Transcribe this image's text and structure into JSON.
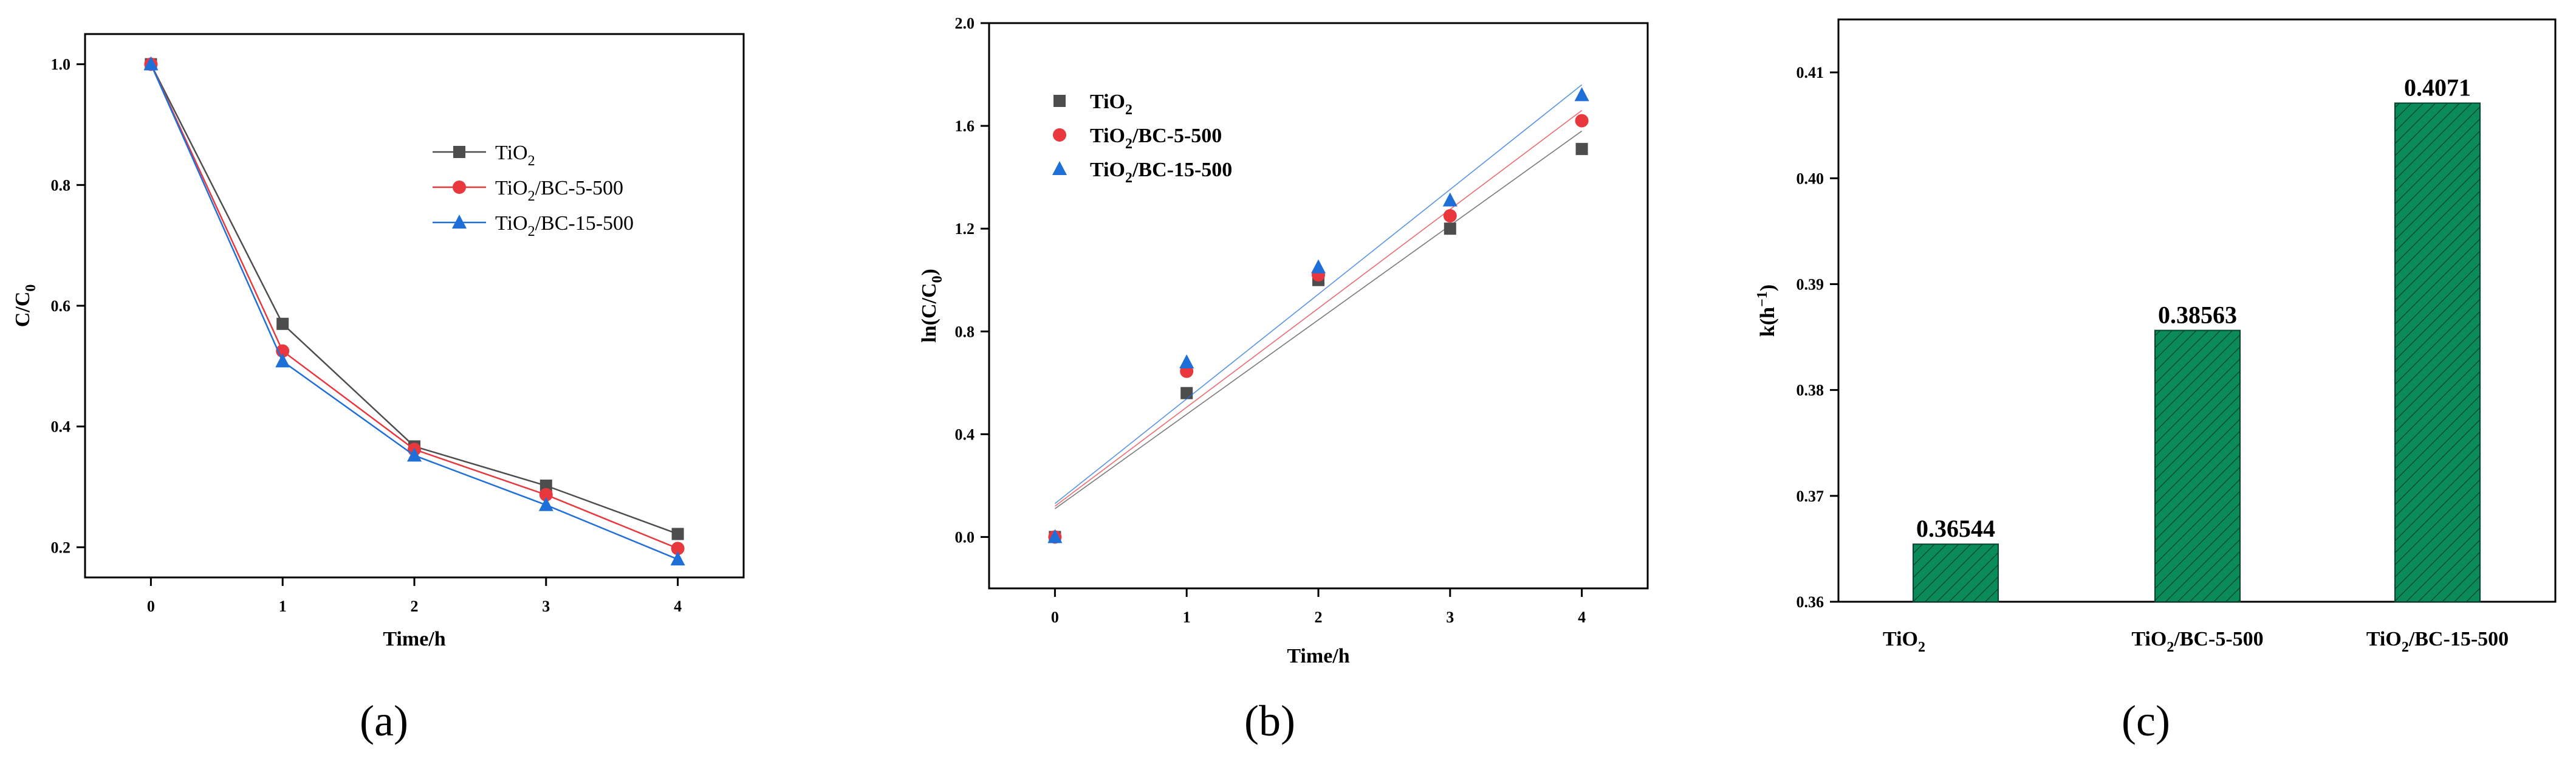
{
  "colors": {
    "tio2": "#4d4d4d",
    "bc5": "#e8383d",
    "bc15": "#1f6fd9",
    "bar": "#0b8a5a"
  },
  "chart_data": [
    {
      "type": "line",
      "panel": "(a)",
      "xlabel": "Time/h",
      "ylabel": "C/C0",
      "xlim": [
        -0.5,
        4.5
      ],
      "ylim": [
        0.15,
        1.05
      ],
      "xticks": [
        0,
        1,
        2,
        3,
        4
      ],
      "yticks": [
        0.2,
        0.4,
        0.6,
        0.8,
        1.0
      ],
      "legend_loc": "upper-right",
      "series": [
        {
          "name": "TiO2",
          "base": "TiO",
          "sub": "2",
          "rest": "",
          "marker": "square",
          "color": "#4d4d4d",
          "x": [
            0,
            1,
            2,
            3,
            4
          ],
          "y": [
            1.0,
            0.57,
            0.367,
            0.302,
            0.222
          ]
        },
        {
          "name": "TiO2/BC-5-500",
          "base": "TiO",
          "sub": "2",
          "rest": "/BC-5-500",
          "marker": "circle",
          "color": "#e8383d",
          "x": [
            0,
            1,
            2,
            3,
            4
          ],
          "y": [
            1.0,
            0.525,
            0.362,
            0.287,
            0.198
          ]
        },
        {
          "name": "TiO2/BC-15-500",
          "base": "TiO",
          "sub": "2",
          "rest": "/BC-15-500",
          "marker": "triangle",
          "color": "#1f6fd9",
          "x": [
            0,
            1,
            2,
            3,
            4
          ],
          "y": [
            1.0,
            0.508,
            0.352,
            0.27,
            0.18
          ]
        }
      ]
    },
    {
      "type": "scatter",
      "panel": "(b)",
      "xlabel": "Time/h",
      "ylabel": "ln(C/C0)",
      "xlim": [
        -0.5,
        4.5
      ],
      "ylim": [
        -0.2,
        2.0
      ],
      "xticks": [
        0,
        1,
        2,
        3,
        4
      ],
      "yticks": [
        0.0,
        0.4,
        0.8,
        1.2,
        1.6,
        2.0
      ],
      "legend_loc": "upper-left",
      "series": [
        {
          "name": "TiO2",
          "base": "TiO",
          "sub": "2",
          "rest": "",
          "marker": "square",
          "color": "#4d4d4d",
          "x": [
            0,
            1,
            2,
            3,
            4
          ],
          "y": [
            0.0,
            0.56,
            1.0,
            1.2,
            1.51
          ],
          "fit": [
            0.11,
            1.58
          ]
        },
        {
          "name": "TiO2/BC-5-500",
          "base": "TiO",
          "sub": "2",
          "rest": "/BC-5-500",
          "marker": "circle",
          "color": "#e8383d",
          "x": [
            0,
            1,
            2,
            3,
            4
          ],
          "y": [
            0.0,
            0.645,
            1.02,
            1.25,
            1.62
          ],
          "fit": [
            0.12,
            1.66
          ]
        },
        {
          "name": "TiO2/BC-15-500",
          "base": "TiO",
          "sub": "2",
          "rest": "/BC-15-500",
          "marker": "triangle",
          "color": "#1f6fd9",
          "x": [
            0,
            1,
            2,
            3,
            4
          ],
          "y": [
            0.0,
            0.68,
            1.05,
            1.31,
            1.72
          ],
          "fit": [
            0.13,
            1.76
          ]
        }
      ]
    },
    {
      "type": "bar",
      "panel": "(c)",
      "ylabel": "k(h",
      "ylabel_sup": "−1",
      "ylim": [
        0.36,
        0.415
      ],
      "yticks": [
        0.36,
        0.37,
        0.38,
        0.39,
        0.4,
        0.41
      ],
      "categories": [
        {
          "base": "TiO",
          "sub": "2",
          "rest": ""
        },
        {
          "base": "TiO",
          "sub": "2",
          "rest": "/BC-5-500"
        },
        {
          "base": "TiO",
          "sub": "2",
          "rest": "/BC-15-500"
        }
      ],
      "values": [
        0.36544,
        0.38563,
        0.4071
      ],
      "value_labels": [
        "0.36544",
        "0.38563",
        "0.4071"
      ],
      "fill": "hatched"
    }
  ]
}
